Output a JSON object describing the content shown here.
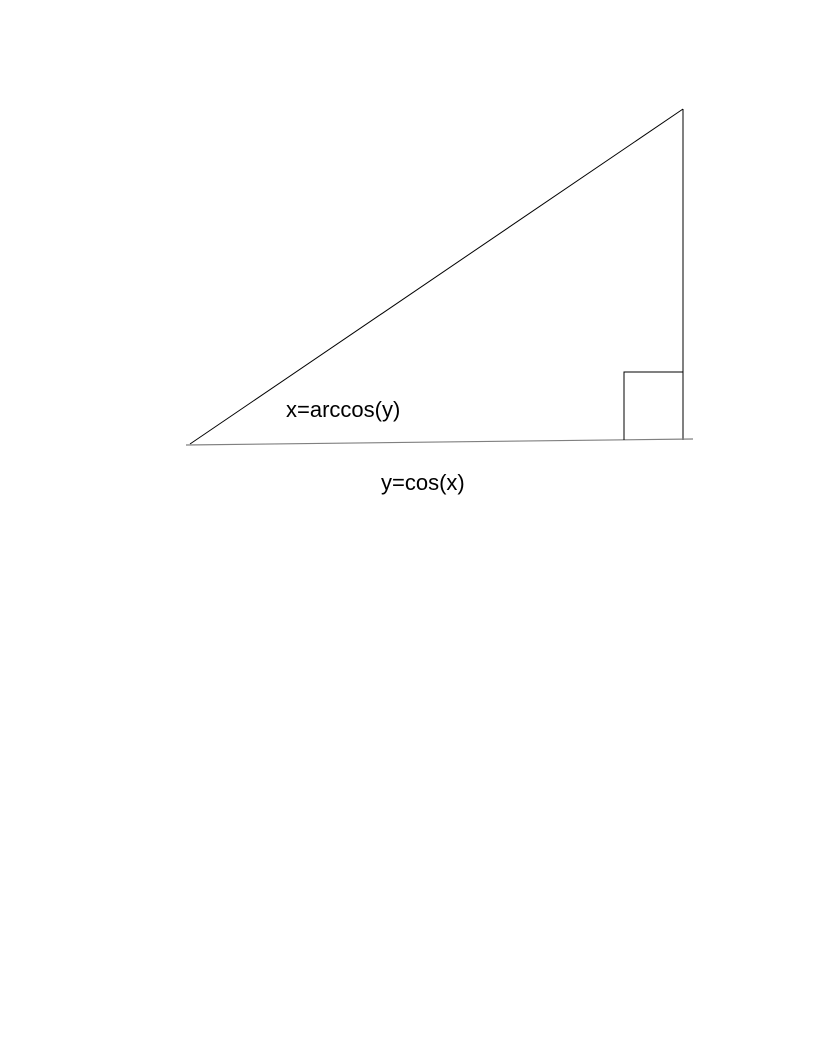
{
  "diagram": {
    "type": "right-triangle",
    "angle_label": "x=arccos(y)",
    "base_label": "y=cos(x)",
    "colors": {
      "stroke": "#000000",
      "base_stroke": "#808080",
      "text": "#000000",
      "background": "#ffffff"
    }
  }
}
